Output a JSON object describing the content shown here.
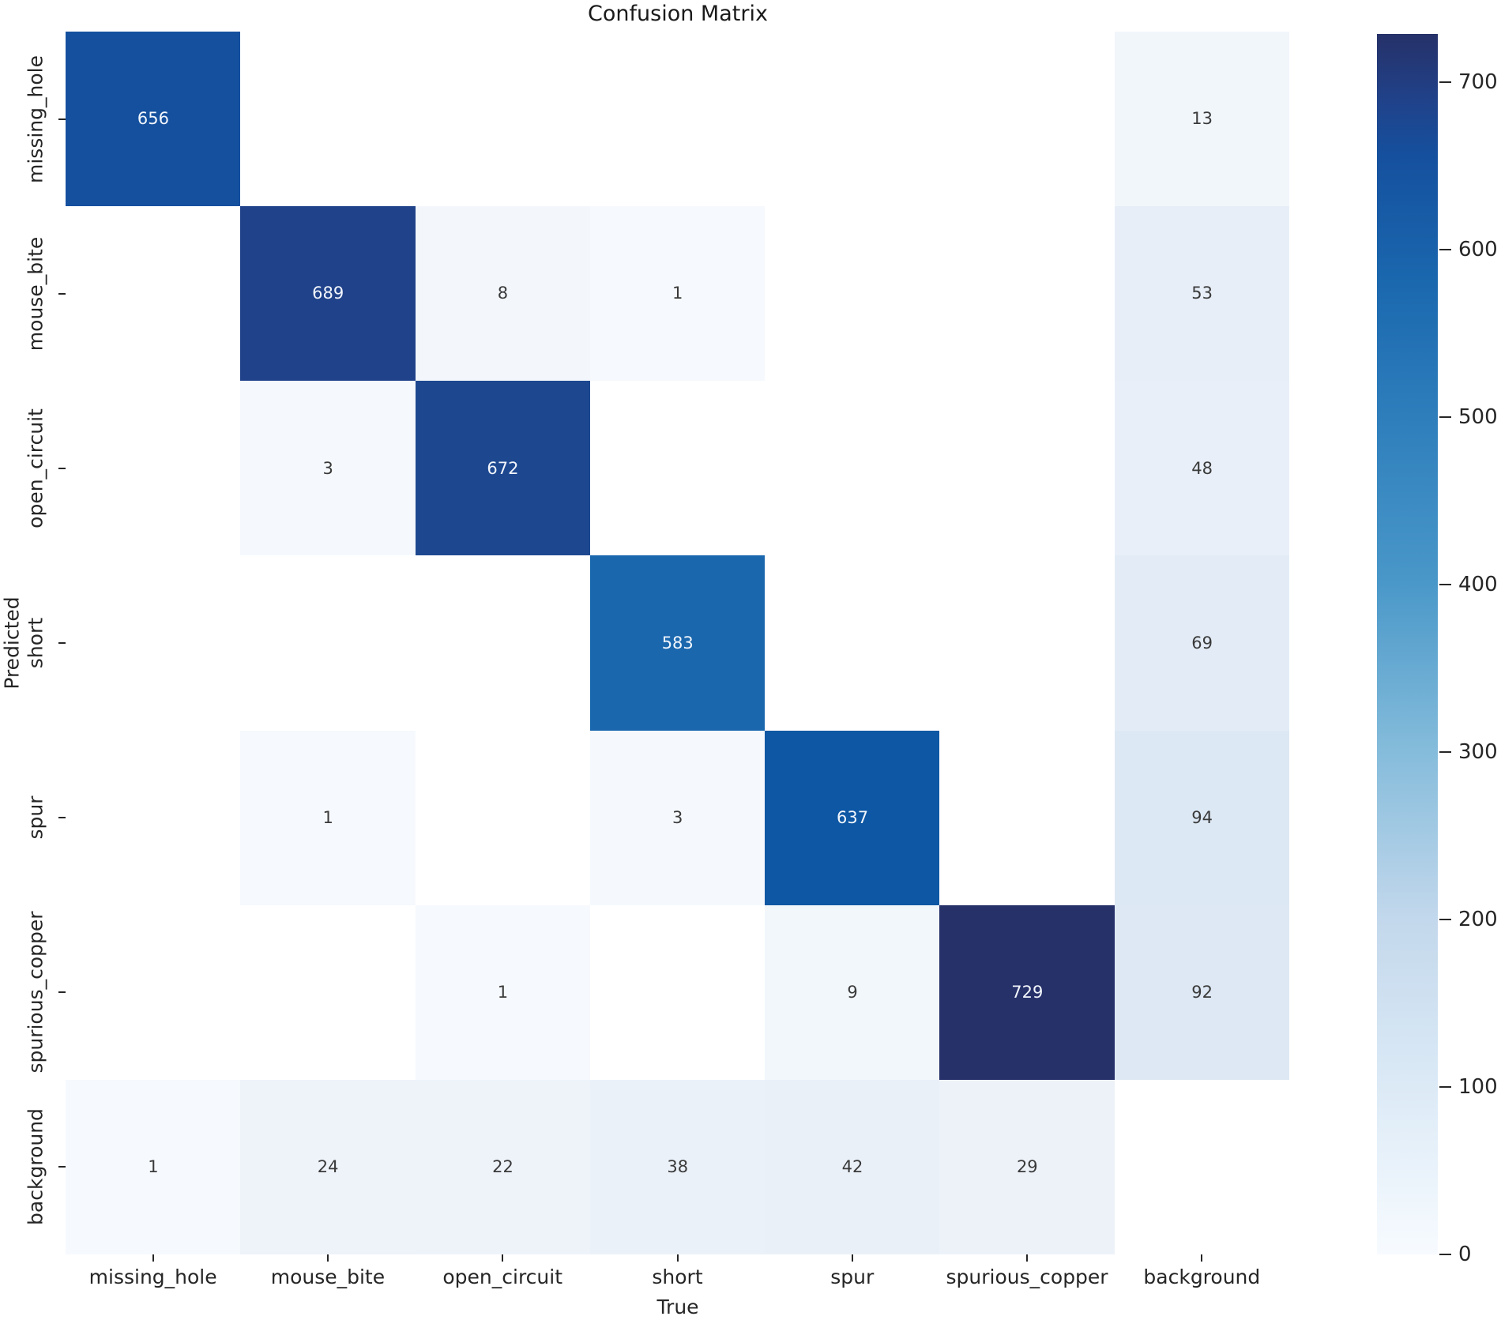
{
  "chart_data": {
    "type": "heatmap",
    "title": "Confusion Matrix",
    "xlabel": "True",
    "ylabel": "Predicted",
    "categories": [
      "missing_hole",
      "mouse_bite",
      "open_circuit",
      "short",
      "spur",
      "spurious_copper",
      "background"
    ],
    "rows": [
      {
        "label": "missing_hole",
        "values": [
          656,
          null,
          null,
          null,
          null,
          null,
          13
        ]
      },
      {
        "label": "mouse_bite",
        "values": [
          null,
          689,
          8,
          1,
          null,
          null,
          53
        ]
      },
      {
        "label": "open_circuit",
        "values": [
          null,
          3,
          672,
          null,
          null,
          null,
          48
        ]
      },
      {
        "label": "short",
        "values": [
          null,
          null,
          null,
          583,
          null,
          null,
          69
        ]
      },
      {
        "label": "spur",
        "values": [
          null,
          1,
          null,
          3,
          637,
          null,
          94
        ]
      },
      {
        "label": "spurious_copper",
        "values": [
          null,
          null,
          1,
          null,
          9,
          729,
          92
        ]
      },
      {
        "label": "background",
        "values": [
          1,
          24,
          22,
          38,
          42,
          29,
          null
        ]
      }
    ],
    "cell_colors": [
      [
        "#15509e",
        "#ffffff",
        "#ffffff",
        "#ffffff",
        "#ffffff",
        "#ffffff",
        "#f1f6fb"
      ],
      [
        "#ffffff",
        "#20428a",
        "#f3f7fc",
        "#f6f9fd",
        "#ffffff",
        "#ffffff",
        "#e7eef7"
      ],
      [
        "#ffffff",
        "#f5f9fd",
        "#1d4890",
        "#ffffff",
        "#ffffff",
        "#ffffff",
        "#e8eff8"
      ],
      [
        "#ffffff",
        "#ffffff",
        "#ffffff",
        "#1a67ae",
        "#ffffff",
        "#ffffff",
        "#e3ecf6"
      ],
      [
        "#ffffff",
        "#f6f9fd",
        "#ffffff",
        "#f5f9fd",
        "#0d57a4",
        "#ffffff",
        "#dce8f4"
      ],
      [
        "#ffffff",
        "#ffffff",
        "#f6f9fd",
        "#ffffff",
        "#f2f7fc",
        "#263069",
        "#dde8f4"
      ],
      [
        "#f6f9fd",
        "#eef2f9",
        "#eef3fa",
        "#ebf1f9",
        "#eaf0f8",
        "#edf2f9",
        "#ffffff"
      ]
    ],
    "annotation_color_dark": "#3a3a3a",
    "annotation_color_light": "#f2f6fc",
    "colorbar": {
      "vmin": 0,
      "vmax": 729,
      "tick_labels": [
        "700",
        "600",
        "500",
        "400",
        "300",
        "200",
        "100",
        "0"
      ],
      "tick_values": [
        700,
        600,
        500,
        400,
        300,
        200,
        100,
        0
      ],
      "gradient_stops": [
        {
          "pos": 0,
          "color": "#263169"
        },
        {
          "pos": 5.5,
          "color": "#20428a"
        },
        {
          "pos": 10,
          "color": "#15509e"
        },
        {
          "pos": 20,
          "color": "#1a67ae"
        },
        {
          "pos": 31.4,
          "color": "#2e7ebc"
        },
        {
          "pos": 45.1,
          "color": "#4a98c9"
        },
        {
          "pos": 58.8,
          "color": "#85bcdb"
        },
        {
          "pos": 72.6,
          "color": "#c3d8ec"
        },
        {
          "pos": 86.3,
          "color": "#dceaf6"
        },
        {
          "pos": 100,
          "color": "#f7fbff"
        }
      ]
    }
  }
}
